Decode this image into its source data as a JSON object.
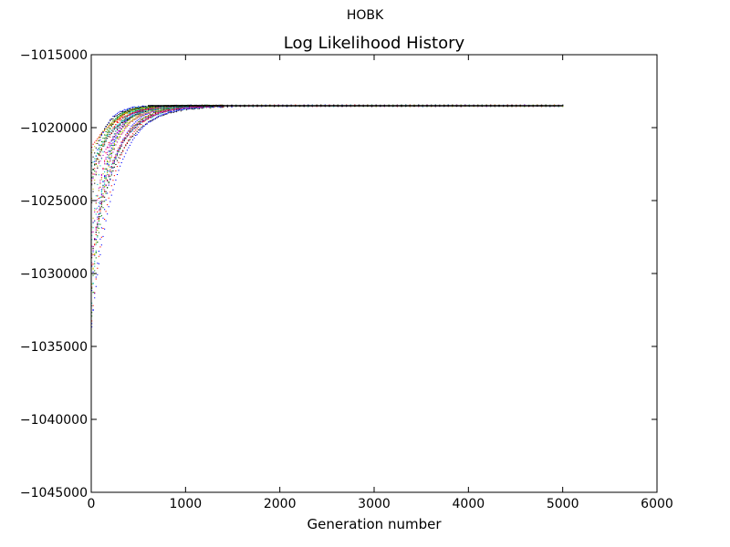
{
  "figure": {
    "suptitle": "HOBK"
  },
  "chart_data": {
    "type": "line",
    "title": "Log Likelihood History",
    "xlabel": "Generation number",
    "ylabel": "",
    "xlim": [
      0,
      6000
    ],
    "ylim": [
      -1045000,
      -1015000
    ],
    "xticks": [
      0,
      1000,
      2000,
      3000,
      4000,
      5000,
      6000
    ],
    "yticks": [
      -1015000,
      -1020000,
      -1025000,
      -1030000,
      -1035000,
      -1040000,
      -1045000
    ],
    "xtick_labels": [
      "0",
      "1000",
      "2000",
      "3000",
      "4000",
      "5000",
      "6000"
    ],
    "ytick_labels": [
      "−1015000",
      "−1020000",
      "−1025000",
      "−1030000",
      "−1035000",
      "−1040000",
      "−1045000"
    ],
    "grid": false,
    "legend": "none",
    "marker": "pixel",
    "series_colors": [
      "#0000ff",
      "#008000",
      "#ff0000",
      "#00bfbf",
      "#bf00bf",
      "#bfbf00",
      "#000000"
    ],
    "series_count": 35,
    "generations": 5000,
    "plateau_value": -1018500,
    "start_range": [
      -1034000,
      -1021000
    ],
    "convergence_generation_range": [
      500,
      1300
    ]
  }
}
